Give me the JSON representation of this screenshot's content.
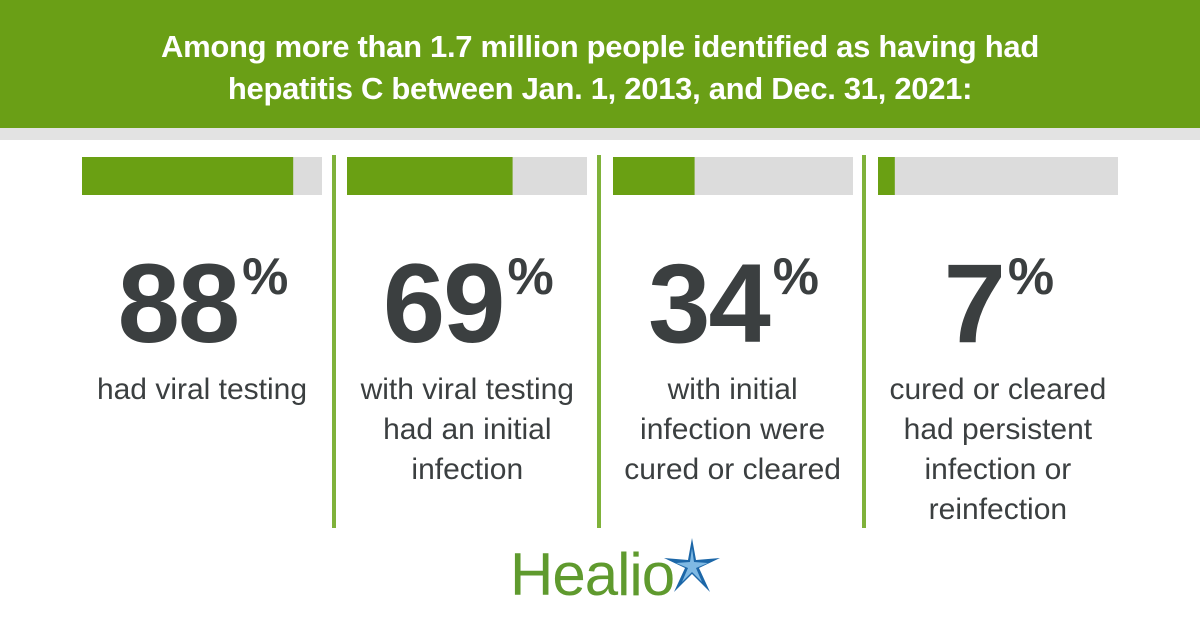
{
  "chart_data": {
    "type": "progress",
    "title": "Among more than 1.7 million people identified as having had hepatitis C between Jan. 1, 2013, and Dec. 31, 2021:",
    "categories": [
      "had viral testing",
      "with viral testing had an initial infection",
      "with initial infection were cured or cleared",
      "cured or cleared had persistent infection or reinfection"
    ],
    "values": [
      88,
      69,
      34,
      7
    ],
    "value_labels": [
      "88%",
      "69%",
      "34%",
      "7%"
    ],
    "xlim": [
      0,
      100
    ],
    "color": "#6aa013",
    "track_color": "#dcdcdc"
  },
  "logo": "Healio"
}
